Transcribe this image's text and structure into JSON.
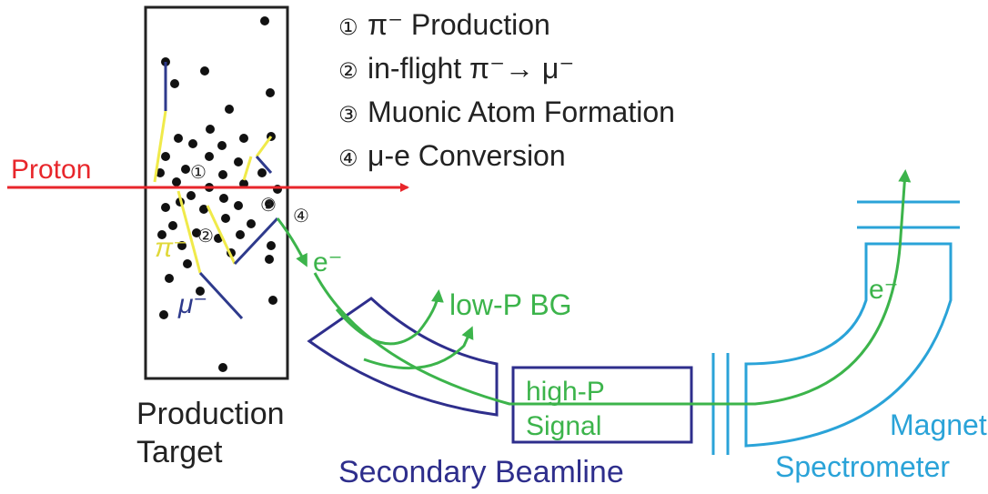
{
  "legend": {
    "step1": {
      "num": "①",
      "text": "π⁻ Production"
    },
    "step2": {
      "num": "②",
      "text": "in-flight π⁻→ μ⁻"
    },
    "step3": {
      "num": "③",
      "text": "Muonic Atom Formation"
    },
    "step4": {
      "num": "④",
      "text": "μ-e Conversion"
    }
  },
  "labels": {
    "proton": "Proton",
    "pion": "π⁻",
    "muon": "μ⁻",
    "electron_1": "e⁻",
    "electron_2": "e⁻",
    "low_p_bg": "low-P BG",
    "signal_line1": "high-P",
    "signal_line2": "Signal",
    "target_line1": "Production",
    "target_line2": "Target",
    "beamline": "Secondary Beamline",
    "spectrometer_line1": "Magnet",
    "spectrometer_line2": "Spectrometer",
    "marker_1": "①",
    "marker_2": "②",
    "marker_3": "③",
    "marker_4": "④"
  },
  "colors": {
    "proton": "#e8262b",
    "pion": "#f0ea4a",
    "muon": "#2e3a8c",
    "electron": "#3cb44b",
    "beamline": "#2e2e8c",
    "spectrometer": "#2aa3d8",
    "text": "#222222"
  }
}
